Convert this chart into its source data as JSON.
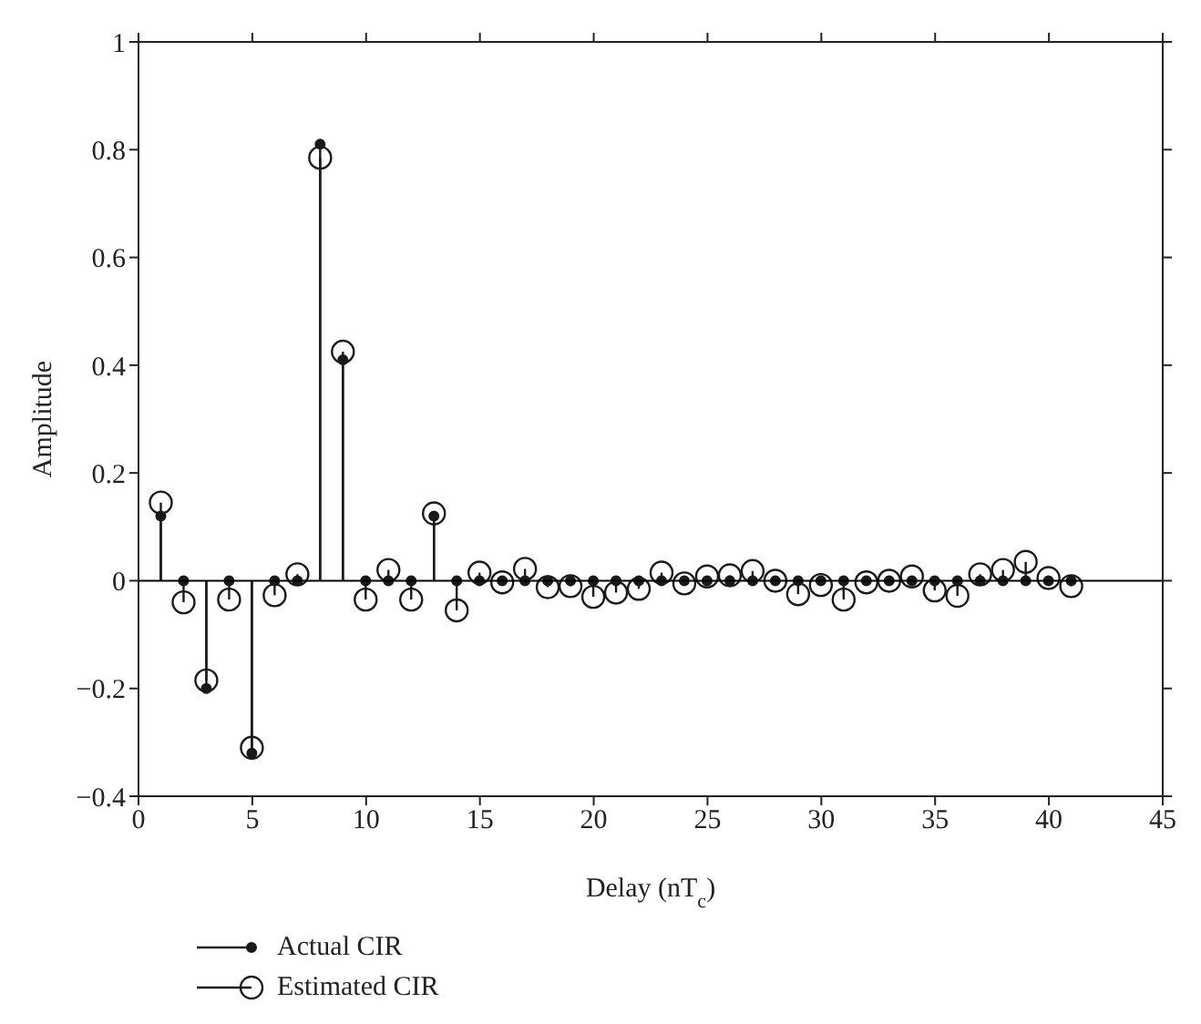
{
  "chart_data": {
    "type": "lollipop",
    "xlabel": "Delay (nT$_{c}$)",
    "ylabel": "Amplitude",
    "xlim": [
      0,
      45
    ],
    "xticks": [
      0,
      5,
      10,
      15,
      20,
      25,
      30,
      35,
      40,
      45
    ],
    "ylim": [
      -0.4,
      1
    ],
    "yticks": [
      -0.4,
      -0.2,
      0,
      0.2,
      0.4,
      0.6,
      0.8,
      1
    ],
    "x": [
      1,
      2,
      3,
      4,
      5,
      6,
      7,
      8,
      9,
      10,
      11,
      12,
      13,
      14,
      15,
      16,
      17,
      18,
      19,
      20,
      21,
      22,
      23,
      24,
      25,
      26,
      27,
      28,
      29,
      30,
      31,
      32,
      33,
      34,
      35,
      36,
      37,
      38,
      39,
      40,
      41
    ],
    "legend": "bottom left",
    "ref_lines": [
      {
        "axis": "y",
        "value": 0,
        "color": "#000000"
      }
    ],
    "series": [
      {
        "name": "Actual CIR",
        "color": "#1a1a1a",
        "marker": "circle",
        "values": [
          0.12,
          0,
          -0.2,
          0,
          -0.32,
          0,
          0,
          0.81,
          0.41,
          0,
          0,
          0,
          0.12,
          0,
          0,
          0,
          0,
          0,
          0,
          0,
          0,
          0,
          0,
          0,
          0,
          0,
          0,
          0,
          0,
          0,
          0,
          0,
          0,
          0,
          0,
          0,
          0,
          0,
          0,
          0,
          0
        ]
      },
      {
        "name": "Estimated CIR",
        "color": "#1a1a1a",
        "marker": "circle",
        "values": [
          0.145,
          -0.04,
          -0.185,
          -0.035,
          -0.31,
          -0.027,
          0.012,
          0.785,
          0.425,
          -0.035,
          0.02,
          -0.035,
          0.125,
          -0.055,
          0.015,
          -0.003,
          0.022,
          -0.012,
          -0.01,
          -0.03,
          -0.022,
          -0.015,
          0.015,
          -0.005,
          0.008,
          0.01,
          0.018,
          0,
          -0.025,
          -0.008,
          -0.035,
          -0.003,
          0,
          0.008,
          -0.018,
          -0.028,
          0.012,
          0.02,
          0.035,
          0.005,
          -0.01
        ]
      }
    ]
  }
}
